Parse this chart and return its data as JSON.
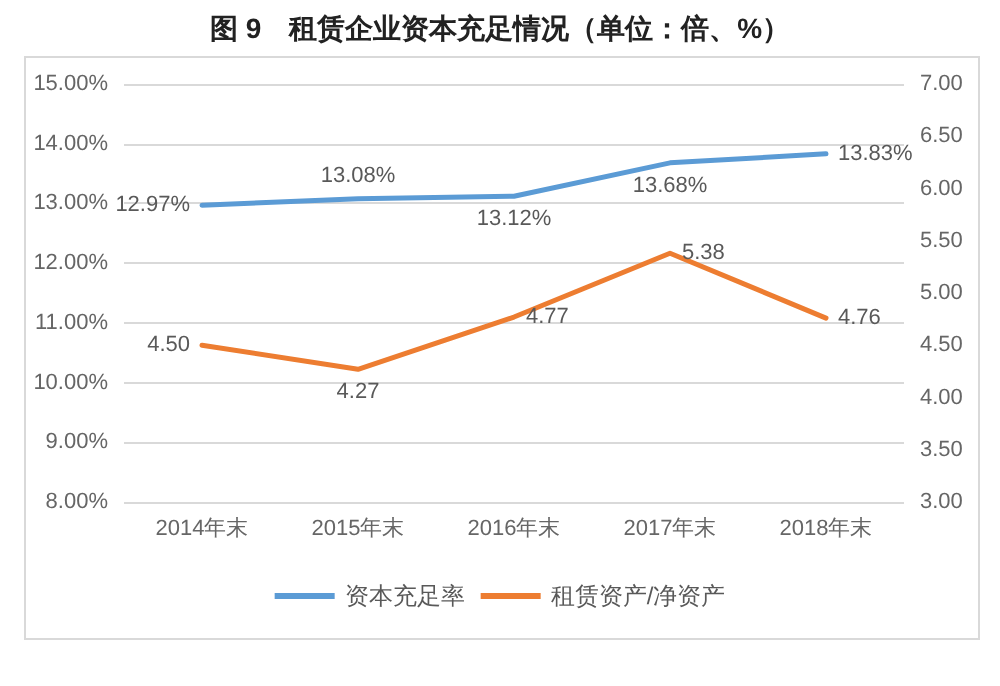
{
  "chart_data": {
    "type": "line",
    "title": "图 9　租赁企业资本充足情况（单位：倍、%）",
    "categories": [
      "2014年末",
      "2015年末",
      "2016年末",
      "2017年末",
      "2018年末"
    ],
    "series": [
      {
        "name": "资本充足率",
        "color": "#5b9bd5",
        "values": [
          12.97,
          13.08,
          13.12,
          13.68,
          13.83
        ],
        "value_labels": [
          "12.97%",
          "13.08%",
          "13.12%",
          "13.68%",
          "13.83%"
        ]
      },
      {
        "name": "租赁资产/净资产",
        "color": "#ed7d31",
        "axis": "y2",
        "values": [
          4.5,
          4.27,
          4.77,
          5.38,
          4.76
        ],
        "value_labels": [
          "4.50",
          "4.27",
          "4.77",
          "5.38",
          "4.76"
        ]
      }
    ],
    "ylim": [
      8,
      15
    ],
    "yticks": [
      {
        "value": 8,
        "label": "8.00%"
      },
      {
        "value": 9,
        "label": "9.00%"
      },
      {
        "value": 10,
        "label": "10.00%"
      },
      {
        "value": 11,
        "label": "11.00%"
      },
      {
        "value": 12,
        "label": "12.00%"
      },
      {
        "value": 13,
        "label": "13.00%"
      },
      {
        "value": 14,
        "label": "14.00%"
      },
      {
        "value": 15,
        "label": "15.00%"
      }
    ],
    "y2lim": [
      3,
      7
    ],
    "y2ticks": [
      {
        "value": 3,
        "label": "3.00"
      },
      {
        "value": 3.5,
        "label": "3.50"
      },
      {
        "value": 4,
        "label": "4.00"
      },
      {
        "value": 4.5,
        "label": "4.50"
      },
      {
        "value": 5,
        "label": "5.00"
      },
      {
        "value": 5.5,
        "label": "5.50"
      },
      {
        "value": 6,
        "label": "6.00"
      },
      {
        "value": 6.5,
        "label": "6.50"
      },
      {
        "value": 7,
        "label": "7.00"
      }
    ],
    "grid": "y",
    "legend": "bottom",
    "marker": "none",
    "line_style": "solid"
  }
}
